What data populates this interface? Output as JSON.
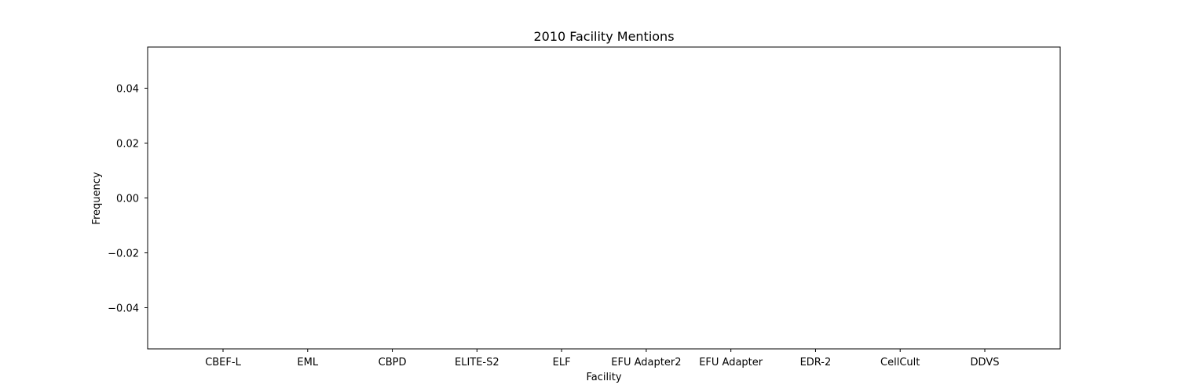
{
  "chart_data": {
    "type": "bar",
    "title": "2010 Facility Mentions",
    "xlabel": "Facility",
    "ylabel": "Frequency",
    "categories": [
      "CBEF-L",
      "EML",
      "CBPD",
      "ELITE-S2",
      "ELF",
      "EFU Adapter2",
      "EFU Adapter",
      "EDR-2",
      "CellCult",
      "DDVS"
    ],
    "values": [
      0,
      0,
      0,
      0,
      0,
      0,
      0,
      0,
      0,
      0
    ],
    "ylim": [
      -0.055,
      0.055
    ],
    "yticks": [
      {
        "value": -0.04,
        "label": "−0.04"
      },
      {
        "value": -0.02,
        "label": "−0.02"
      },
      {
        "value": 0.0,
        "label": "0.00"
      },
      {
        "value": 0.02,
        "label": "0.02"
      },
      {
        "value": 0.04,
        "label": "0.04"
      }
    ],
    "grid": false,
    "colors": {
      "bar": "#1f77b4",
      "axes": "#000000",
      "background": "#ffffff"
    }
  }
}
